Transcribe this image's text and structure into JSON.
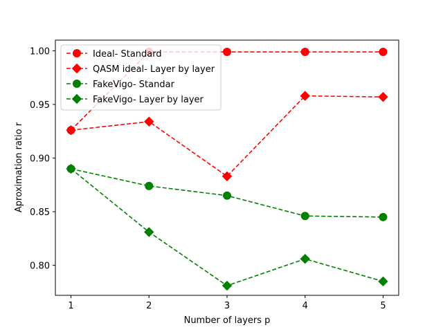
{
  "chart_data": {
    "type": "line",
    "title": "",
    "xlabel": "Number of layers p",
    "ylabel": "Aproximation ratio r",
    "x": [
      1,
      2,
      3,
      4,
      5
    ],
    "xlim": [
      0.8,
      5.2
    ],
    "ylim": [
      0.772,
      1.01
    ],
    "xticks": [
      "1",
      "2",
      "3",
      "4",
      "5"
    ],
    "yticks": [
      "0.80",
      "0.85",
      "0.90",
      "0.95",
      "1.00"
    ],
    "grid": false,
    "legend_position": "upper-left",
    "series": [
      {
        "name": "Ideal- Standard",
        "color": "#ff0000",
        "marker": "circle",
        "linestyle": "dashed",
        "values": [
          0.926,
          0.999,
          0.999,
          0.999,
          0.999
        ]
      },
      {
        "name": "QASM ideal- Layer by layer",
        "color": "#ff0000",
        "marker": "diamond",
        "linestyle": "dashed",
        "values": [
          0.926,
          0.934,
          0.883,
          0.958,
          0.957
        ]
      },
      {
        "name": "FakeVigo- Standar",
        "color": "#008000",
        "marker": "circle",
        "linestyle": "dashed",
        "values": [
          0.89,
          0.874,
          0.865,
          0.846,
          0.845
        ]
      },
      {
        "name": "FakeVigo- Layer by layer",
        "color": "#008000",
        "marker": "diamond",
        "linestyle": "dashed",
        "values": [
          0.89,
          0.831,
          0.781,
          0.806,
          0.785
        ]
      }
    ]
  }
}
